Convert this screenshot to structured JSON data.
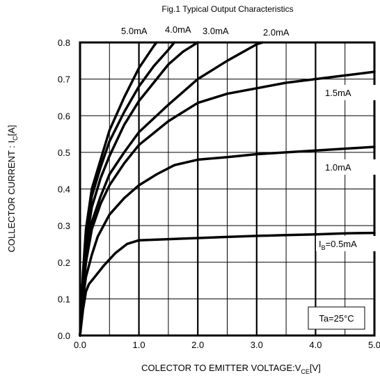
{
  "chart_data": {
    "type": "line",
    "title": "Fig.1 Typical Output Characteristics",
    "xlabel": {
      "main": "COLECTOR TO EMITTER VOLTAGE:V",
      "sub": "CE",
      "tail": "[V]"
    },
    "ylabel": {
      "main": "COLLECTOR CURRENT : I",
      "sub": "C",
      "tail": "[A]"
    },
    "xlim": [
      0,
      5
    ],
    "ylim": [
      0,
      0.8
    ],
    "xticks": [
      "0.0",
      "1.0",
      "2.0",
      "3.0",
      "4.0",
      "5.0"
    ],
    "yticks": [
      "0.0",
      "0.1",
      "0.2",
      "0.3",
      "0.4",
      "0.5",
      "0.6",
      "0.7",
      "0.8"
    ],
    "grid": true,
    "x_minor_step": 0.5,
    "y_step": 0.1,
    "annotation": "Ta=25°C",
    "series": [
      {
        "name": "IB=0.5mA",
        "label": {
          "main": "I",
          "sub": "B",
          "tail": "=0.5mA"
        },
        "points": [
          [
            0,
            0
          ],
          [
            0.05,
            0.07
          ],
          [
            0.1,
            0.12
          ],
          [
            0.15,
            0.14
          ],
          [
            0.25,
            0.16
          ],
          [
            0.4,
            0.19
          ],
          [
            0.6,
            0.225
          ],
          [
            0.8,
            0.25
          ],
          [
            1.0,
            0.26
          ],
          [
            1.5,
            0.263
          ],
          [
            2.0,
            0.266
          ],
          [
            2.5,
            0.269
          ],
          [
            3.0,
            0.272
          ],
          [
            3.5,
            0.274
          ],
          [
            4.0,
            0.276
          ],
          [
            4.5,
            0.279
          ],
          [
            5.0,
            0.28
          ]
        ]
      },
      {
        "name": "1.0mA",
        "label": {
          "main": "1.0mA",
          "sub": "",
          "tail": ""
        },
        "points": [
          [
            0,
            0
          ],
          [
            0.05,
            0.1
          ],
          [
            0.1,
            0.16
          ],
          [
            0.2,
            0.22
          ],
          [
            0.3,
            0.27
          ],
          [
            0.5,
            0.33
          ],
          [
            0.75,
            0.375
          ],
          [
            1.0,
            0.41
          ],
          [
            1.3,
            0.44
          ],
          [
            1.6,
            0.465
          ],
          [
            2.0,
            0.48
          ],
          [
            2.5,
            0.487
          ],
          [
            3.0,
            0.495
          ],
          [
            3.5,
            0.5
          ],
          [
            4.0,
            0.505
          ],
          [
            4.5,
            0.51
          ],
          [
            5.0,
            0.515
          ]
        ]
      },
      {
        "name": "1.5mA",
        "label": {
          "main": "1.5mA",
          "sub": "",
          "tail": ""
        },
        "points": [
          [
            0,
            0
          ],
          [
            0.05,
            0.12
          ],
          [
            0.1,
            0.2
          ],
          [
            0.2,
            0.29
          ],
          [
            0.35,
            0.36
          ],
          [
            0.5,
            0.41
          ],
          [
            0.75,
            0.47
          ],
          [
            1.0,
            0.52
          ],
          [
            1.5,
            0.585
          ],
          [
            2.0,
            0.635
          ],
          [
            2.5,
            0.66
          ],
          [
            3.0,
            0.675
          ],
          [
            3.5,
            0.69
          ],
          [
            4.0,
            0.7
          ],
          [
            4.5,
            0.71
          ],
          [
            5.0,
            0.72
          ]
        ]
      },
      {
        "name": "2.0mA",
        "label": {
          "main": "2.0mA",
          "sub": "",
          "tail": ""
        },
        "points": [
          [
            0,
            0
          ],
          [
            0.05,
            0.13
          ],
          [
            0.1,
            0.22
          ],
          [
            0.2,
            0.31
          ],
          [
            0.35,
            0.38
          ],
          [
            0.5,
            0.44
          ],
          [
            0.75,
            0.5
          ],
          [
            1.0,
            0.555
          ],
          [
            1.5,
            0.63
          ],
          [
            2.0,
            0.7
          ],
          [
            2.5,
            0.75
          ],
          [
            3.0,
            0.795
          ],
          [
            3.1,
            0.8
          ]
        ]
      },
      {
        "name": "3.0mA",
        "label": {
          "main": "3.0mA",
          "sub": "",
          "tail": ""
        },
        "points": [
          [
            0,
            0
          ],
          [
            0.05,
            0.15
          ],
          [
            0.1,
            0.25
          ],
          [
            0.2,
            0.35
          ],
          [
            0.35,
            0.43
          ],
          [
            0.5,
            0.49
          ],
          [
            0.75,
            0.575
          ],
          [
            1.0,
            0.64
          ],
          [
            1.25,
            0.69
          ],
          [
            1.5,
            0.74
          ],
          [
            1.75,
            0.775
          ],
          [
            2.0,
            0.8
          ]
        ]
      },
      {
        "name": "4.0mA",
        "label": {
          "main": "4.0mA",
          "sub": "",
          "tail": ""
        },
        "points": [
          [
            0,
            0
          ],
          [
            0.05,
            0.16
          ],
          [
            0.1,
            0.27
          ],
          [
            0.2,
            0.38
          ],
          [
            0.35,
            0.46
          ],
          [
            0.5,
            0.53
          ],
          [
            0.75,
            0.61
          ],
          [
            1.0,
            0.68
          ],
          [
            1.25,
            0.735
          ],
          [
            1.5,
            0.78
          ],
          [
            1.6,
            0.8
          ]
        ]
      },
      {
        "name": "5.0mA",
        "label": {
          "main": "5.0mA",
          "sub": "",
          "tail": ""
        },
        "points": [
          [
            0,
            0
          ],
          [
            0.05,
            0.17
          ],
          [
            0.1,
            0.29
          ],
          [
            0.2,
            0.4
          ],
          [
            0.35,
            0.48
          ],
          [
            0.5,
            0.56
          ],
          [
            0.75,
            0.65
          ],
          [
            1.0,
            0.73
          ],
          [
            1.25,
            0.79
          ],
          [
            1.3,
            0.8
          ]
        ]
      }
    ]
  }
}
